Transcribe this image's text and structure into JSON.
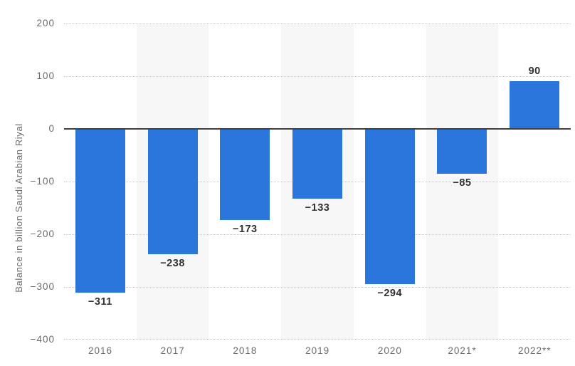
{
  "chart_data": {
    "type": "bar",
    "title": "",
    "xlabel": "",
    "ylabel": "Balance in billion Saudi Arabian Riyal",
    "categories": [
      "2016",
      "2017",
      "2018",
      "2019",
      "2020",
      "2021*",
      "2022**"
    ],
    "values": [
      -311,
      -238,
      -173,
      -133,
      -294,
      -85,
      90
    ],
    "value_labels": [
      "−311",
      "−238",
      "−173",
      "−133",
      "−294",
      "−85",
      "90"
    ],
    "ylim": [
      -400,
      200
    ],
    "yticks": [
      200,
      100,
      0,
      -100,
      -200,
      -300,
      -400
    ],
    "ytick_labels": [
      "200",
      "100",
      "0",
      "−100",
      "−200",
      "−300",
      "−400"
    ],
    "legend": "none",
    "grid": "horizontal-dotted",
    "colors": {
      "bar": "#2b76dc",
      "stripe": "#f7f7f7",
      "gridline": "#c9c9c9",
      "zero_line": "#3f3f3f",
      "tick_text": "#6b6b6b",
      "value_text": "#323232",
      "background": "#ffffff"
    }
  }
}
